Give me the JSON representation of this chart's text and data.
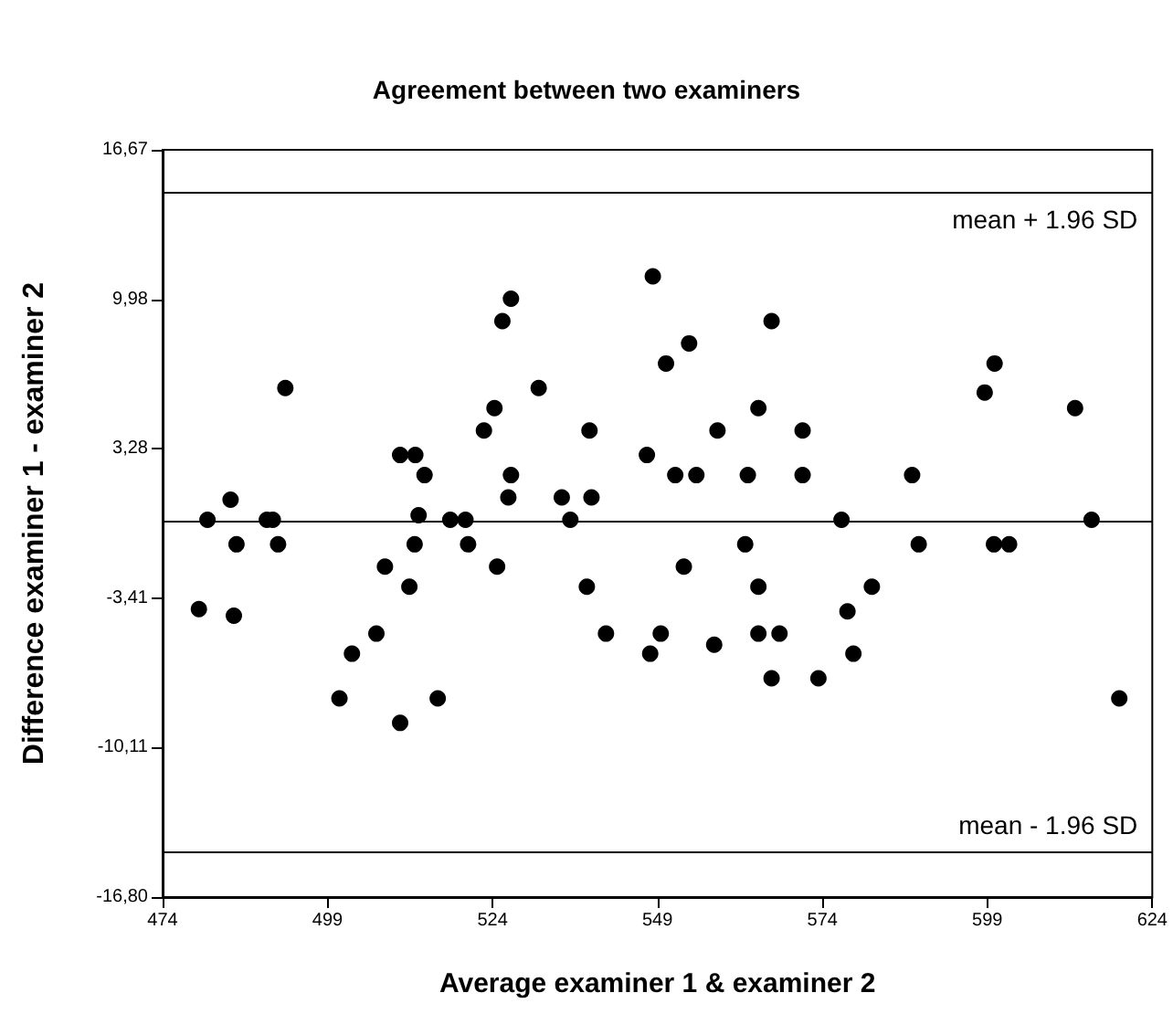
{
  "chart_data": {
    "type": "scatter",
    "title": "Agreement between two examiners",
    "xlabel": "Average examiner 1 & examiner 2",
    "ylabel": "Difference examiner 1 - examiner 2",
    "x": [
      479.5,
      480.8,
      484.3,
      484.8,
      485.2,
      489.8,
      490.7,
      491.5,
      492.6,
      500.8,
      502.7,
      506.4,
      507.7,
      510.0,
      512.3,
      510.0,
      511.4,
      512.2,
      512.8,
      513.7,
      515.7,
      517.6,
      519.9,
      520.3,
      522.7,
      524.3,
      524.7,
      525.5,
      526.8,
      526.8,
      526.4,
      531.0,
      534.5,
      535.8,
      538.7,
      539.0,
      538.3,
      541.2,
      547.4,
      548.3,
      547.9,
      549.5,
      550.3,
      551.7,
      553.0,
      553.8,
      554.9,
      557.6,
      558.1,
      562.3,
      562.7,
      564.3,
      564.3,
      564.3,
      566.3,
      566.3,
      567.5,
      571.0,
      571.0,
      573.4,
      576.9,
      577.8,
      578.7,
      581.5,
      587.6,
      588.6,
      598.6,
      600.1,
      600.0,
      602.3,
      612.3,
      614.8,
      619.0
    ],
    "values": [
      -3.9,
      0.1,
      1.0,
      -4.2,
      -1.0,
      0.1,
      0.1,
      -1.0,
      6.0,
      -7.9,
      -5.9,
      -5.0,
      -2.0,
      3.0,
      3.0,
      -9.0,
      -2.9,
      -1.0,
      0.3,
      2.1,
      -7.9,
      0.1,
      0.1,
      -1.0,
      4.1,
      5.1,
      -2.0,
      9.0,
      10.0,
      2.1,
      1.1,
      6.0,
      1.1,
      0.1,
      4.1,
      1.1,
      -2.9,
      -5.0,
      3.0,
      11.0,
      -5.9,
      -5.0,
      7.1,
      2.1,
      -2.0,
      8.0,
      2.1,
      -5.5,
      4.1,
      -1.0,
      2.1,
      5.1,
      -2.9,
      -5.0,
      9.0,
      -7.0,
      -5.0,
      4.1,
      2.1,
      -7.0,
      0.1,
      -4.0,
      -5.9,
      -2.9,
      2.1,
      -1.0,
      5.8,
      7.1,
      -1.0,
      -1.0,
      5.1,
      0.1,
      -7.9
    ],
    "color": "#000000",
    "marker": "circle",
    "grid": false,
    "xlim": [
      474,
      624
    ],
    "xticks": [
      474,
      499,
      524,
      549,
      574,
      599,
      624
    ],
    "ylim": [
      -16.8,
      16.67
    ],
    "yticks": [
      {
        "value": -16.8,
        "label": "-16,80"
      },
      {
        "value": -10.11,
        "label": "-10,11"
      },
      {
        "value": -3.41,
        "label": "-3,41"
      },
      {
        "value": 3.28,
        "label": "3,28"
      },
      {
        "value": 9.98,
        "label": "9,98"
      },
      {
        "value": 16.67,
        "label": "16,67"
      }
    ],
    "ref_lines": [
      {
        "axis": "y",
        "value": 14.8,
        "label": "mean + 1.96 SD",
        "color": "#000000"
      },
      {
        "axis": "y",
        "value": 0,
        "color": "#000000"
      },
      {
        "axis": "y",
        "value": -14.8,
        "label": "mean - 1.96 SD",
        "color": "#000000"
      }
    ]
  }
}
